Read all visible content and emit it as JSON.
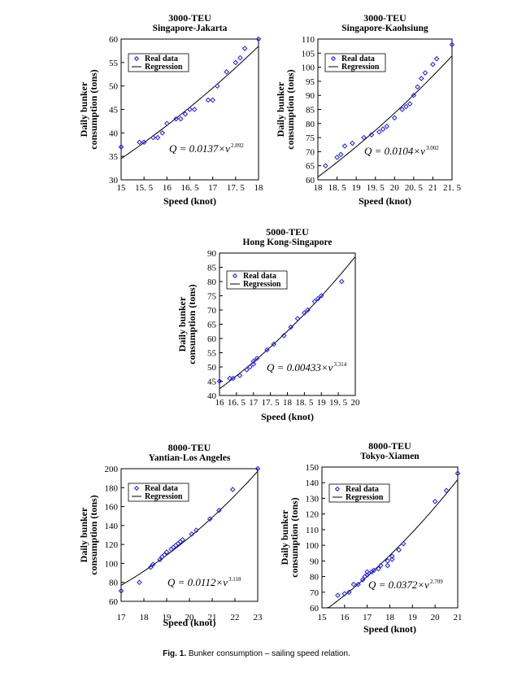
{
  "figure_caption": {
    "label": "Fig. 1.",
    "text": "Bunker consumption – sailing speed relation."
  },
  "colors": {
    "data_marker": "#1a1aff",
    "regression_line": "#000000"
  },
  "chart_data": [
    {
      "type": "scatter",
      "title": "3000-TEU",
      "subtitle": "Singapore-Jakarta",
      "xlabel": "Speed (knot)",
      "ylabel_line1": "Daily bunker",
      "ylabel_line2": "consumption (tons)",
      "xlim": [
        15,
        18
      ],
      "ylim": [
        30,
        60
      ],
      "xticks": [
        15,
        15.5,
        16,
        16.5,
        17,
        17.5,
        18
      ],
      "xtick_labels": [
        "15",
        "15. 5",
        "16",
        "16. 5",
        "17",
        "17. 5",
        "18"
      ],
      "yticks": [
        30,
        35,
        40,
        45,
        50,
        55,
        60
      ],
      "legend": [
        "Real data",
        "Regression"
      ],
      "equation": "Q = 0.0137×v",
      "exponent": "2.892",
      "regression": {
        "a": 0.0137,
        "b": 2.892
      },
      "points": [
        [
          15.0,
          37
        ],
        [
          15.4,
          38
        ],
        [
          15.5,
          38
        ],
        [
          15.7,
          39
        ],
        [
          15.8,
          39
        ],
        [
          15.9,
          40
        ],
        [
          16.0,
          42
        ],
        [
          16.2,
          43
        ],
        [
          16.3,
          43
        ],
        [
          16.4,
          44
        ],
        [
          16.5,
          45
        ],
        [
          16.6,
          45
        ],
        [
          16.9,
          47
        ],
        [
          17.0,
          47
        ],
        [
          17.1,
          50
        ],
        [
          17.3,
          53
        ],
        [
          17.5,
          55
        ],
        [
          17.6,
          56
        ],
        [
          17.7,
          58
        ],
        [
          18.0,
          60
        ]
      ]
    },
    {
      "type": "scatter",
      "title": "3000-TEU",
      "subtitle": "Singapore-Kaohsiung",
      "xlabel": "Speed (knot)",
      "ylabel_line1": "Daily bunker",
      "ylabel_line2": "consumption (tons)",
      "xlim": [
        18,
        21.5
      ],
      "ylim": [
        60,
        110
      ],
      "xticks": [
        18,
        18.5,
        19,
        19.5,
        20,
        20.5,
        21,
        21.5
      ],
      "xtick_labels": [
        "18",
        "18. 5",
        "19",
        "19. 5",
        "20",
        "20. 5",
        "21",
        "21. 5"
      ],
      "yticks": [
        60,
        65,
        70,
        75,
        80,
        85,
        90,
        95,
        100,
        105,
        110
      ],
      "legend": [
        "Real data",
        "Regression"
      ],
      "equation": "Q = 0.0104×v",
      "exponent": "3.002",
      "regression": {
        "a": 0.0104,
        "b": 3.002
      },
      "points": [
        [
          18.2,
          65
        ],
        [
          18.5,
          68
        ],
        [
          18.6,
          69
        ],
        [
          18.7,
          72
        ],
        [
          18.9,
          73
        ],
        [
          19.2,
          75
        ],
        [
          19.4,
          76
        ],
        [
          19.6,
          77
        ],
        [
          19.7,
          78
        ],
        [
          19.8,
          79
        ],
        [
          20.0,
          82
        ],
        [
          20.2,
          85
        ],
        [
          20.3,
          86
        ],
        [
          20.4,
          87
        ],
        [
          20.5,
          90
        ],
        [
          20.6,
          93
        ],
        [
          20.7,
          96
        ],
        [
          20.8,
          98
        ],
        [
          21.0,
          101
        ],
        [
          21.1,
          103
        ],
        [
          21.5,
          108
        ]
      ]
    },
    {
      "type": "scatter",
      "title": "5000-TEU",
      "subtitle": "Hong Kong-Singapore",
      "xlabel": "Speed (knot)",
      "ylabel_line1": "Daily bunker",
      "ylabel_line2": "consumption (tons)",
      "xlim": [
        16,
        20
      ],
      "ylim": [
        40,
        90
      ],
      "xticks": [
        16,
        16.5,
        17,
        17.5,
        18,
        18.5,
        19,
        19.5,
        20
      ],
      "xtick_labels": [
        "16",
        "16. 5",
        "17",
        "17. 5",
        "18",
        "18. 5",
        "19",
        "19. 5",
        "20"
      ],
      "yticks": [
        40,
        45,
        50,
        55,
        60,
        65,
        70,
        75,
        80,
        85,
        90
      ],
      "legend": [
        "Real data",
        "Regression"
      ],
      "equation": "Q = 0.00433×v",
      "exponent": "3.314",
      "regression": {
        "a": 0.00433,
        "b": 3.314
      },
      "points": [
        [
          16.0,
          45
        ],
        [
          16.3,
          46
        ],
        [
          16.4,
          46
        ],
        [
          16.6,
          47
        ],
        [
          16.8,
          49
        ],
        [
          16.9,
          50
        ],
        [
          17.0,
          51
        ],
        [
          17.0,
          52
        ],
        [
          17.1,
          53
        ],
        [
          17.4,
          56
        ],
        [
          17.6,
          58
        ],
        [
          17.9,
          61
        ],
        [
          18.1,
          64
        ],
        [
          18.3,
          67
        ],
        [
          18.5,
          69
        ],
        [
          18.6,
          70
        ],
        [
          18.8,
          73
        ],
        [
          18.9,
          74
        ],
        [
          19.0,
          75
        ],
        [
          19.6,
          80
        ]
      ]
    },
    {
      "type": "scatter",
      "title": "8000-TEU",
      "subtitle": "Yantian-Los Angeles",
      "xlabel": "Speed (knot)",
      "ylabel_line1": "Daily bunker",
      "ylabel_line2": "consumption (tons)",
      "xlim": [
        17,
        23
      ],
      "ylim": [
        60,
        200
      ],
      "xticks": [
        17,
        18,
        19,
        20,
        21,
        22,
        23
      ],
      "xtick_labels": [
        "17",
        "18",
        "19",
        "20",
        "21",
        "22",
        "23"
      ],
      "yticks": [
        60,
        80,
        100,
        120,
        140,
        160,
        180,
        200
      ],
      "legend": [
        "Real data",
        "Regression"
      ],
      "equation": "Q = 0.0112×v",
      "exponent": "3.118",
      "regression": {
        "a": 0.0112,
        "b": 3.118
      },
      "points": [
        [
          17.0,
          71
        ],
        [
          17.8,
          80
        ],
        [
          18.3,
          96
        ],
        [
          18.4,
          99
        ],
        [
          18.7,
          104
        ],
        [
          18.8,
          107
        ],
        [
          18.9,
          109
        ],
        [
          19.0,
          112
        ],
        [
          19.2,
          115
        ],
        [
          19.3,
          117
        ],
        [
          19.4,
          119
        ],
        [
          19.5,
          121
        ],
        [
          19.6,
          123
        ],
        [
          19.7,
          125
        ],
        [
          20.1,
          131
        ],
        [
          20.3,
          135
        ],
        [
          20.9,
          147
        ],
        [
          21.3,
          156
        ],
        [
          21.9,
          178
        ],
        [
          23.0,
          200
        ]
      ]
    },
    {
      "type": "scatter",
      "title": "8000-TEU",
      "subtitle": "Tokyo-Xiamen",
      "xlabel": "Speed (knot)",
      "ylabel_line1": "Daily bunker",
      "ylabel_line2": "consumption (tons)",
      "xlim": [
        15,
        21
      ],
      "ylim": [
        60,
        150
      ],
      "xticks": [
        15,
        16,
        17,
        18,
        19,
        20,
        21
      ],
      "xtick_labels": [
        "15",
        "16",
        "17",
        "18",
        "19",
        "20",
        "21"
      ],
      "yticks": [
        60,
        70,
        80,
        90,
        100,
        110,
        120,
        130,
        140,
        150
      ],
      "legend": [
        "Real data",
        "Regression"
      ],
      "equation": "Q = 0.0372×v",
      "exponent": "2.709",
      "regression": {
        "a": 0.0372,
        "b": 2.709
      },
      "points": [
        [
          15.7,
          68
        ],
        [
          16.0,
          69
        ],
        [
          16.2,
          70
        ],
        [
          16.4,
          75
        ],
        [
          16.6,
          75
        ],
        [
          16.8,
          78
        ],
        [
          16.9,
          80
        ],
        [
          17.0,
          81
        ],
        [
          17.0,
          83
        ],
        [
          17.2,
          83
        ],
        [
          17.3,
          84
        ],
        [
          17.5,
          85
        ],
        [
          17.6,
          87
        ],
        [
          17.9,
          87
        ],
        [
          17.9,
          90
        ],
        [
          18.1,
          91
        ],
        [
          18.1,
          93
        ],
        [
          18.4,
          97
        ],
        [
          18.6,
          101
        ],
        [
          20.0,
          128
        ],
        [
          20.5,
          135
        ],
        [
          21.0,
          146
        ]
      ]
    }
  ]
}
